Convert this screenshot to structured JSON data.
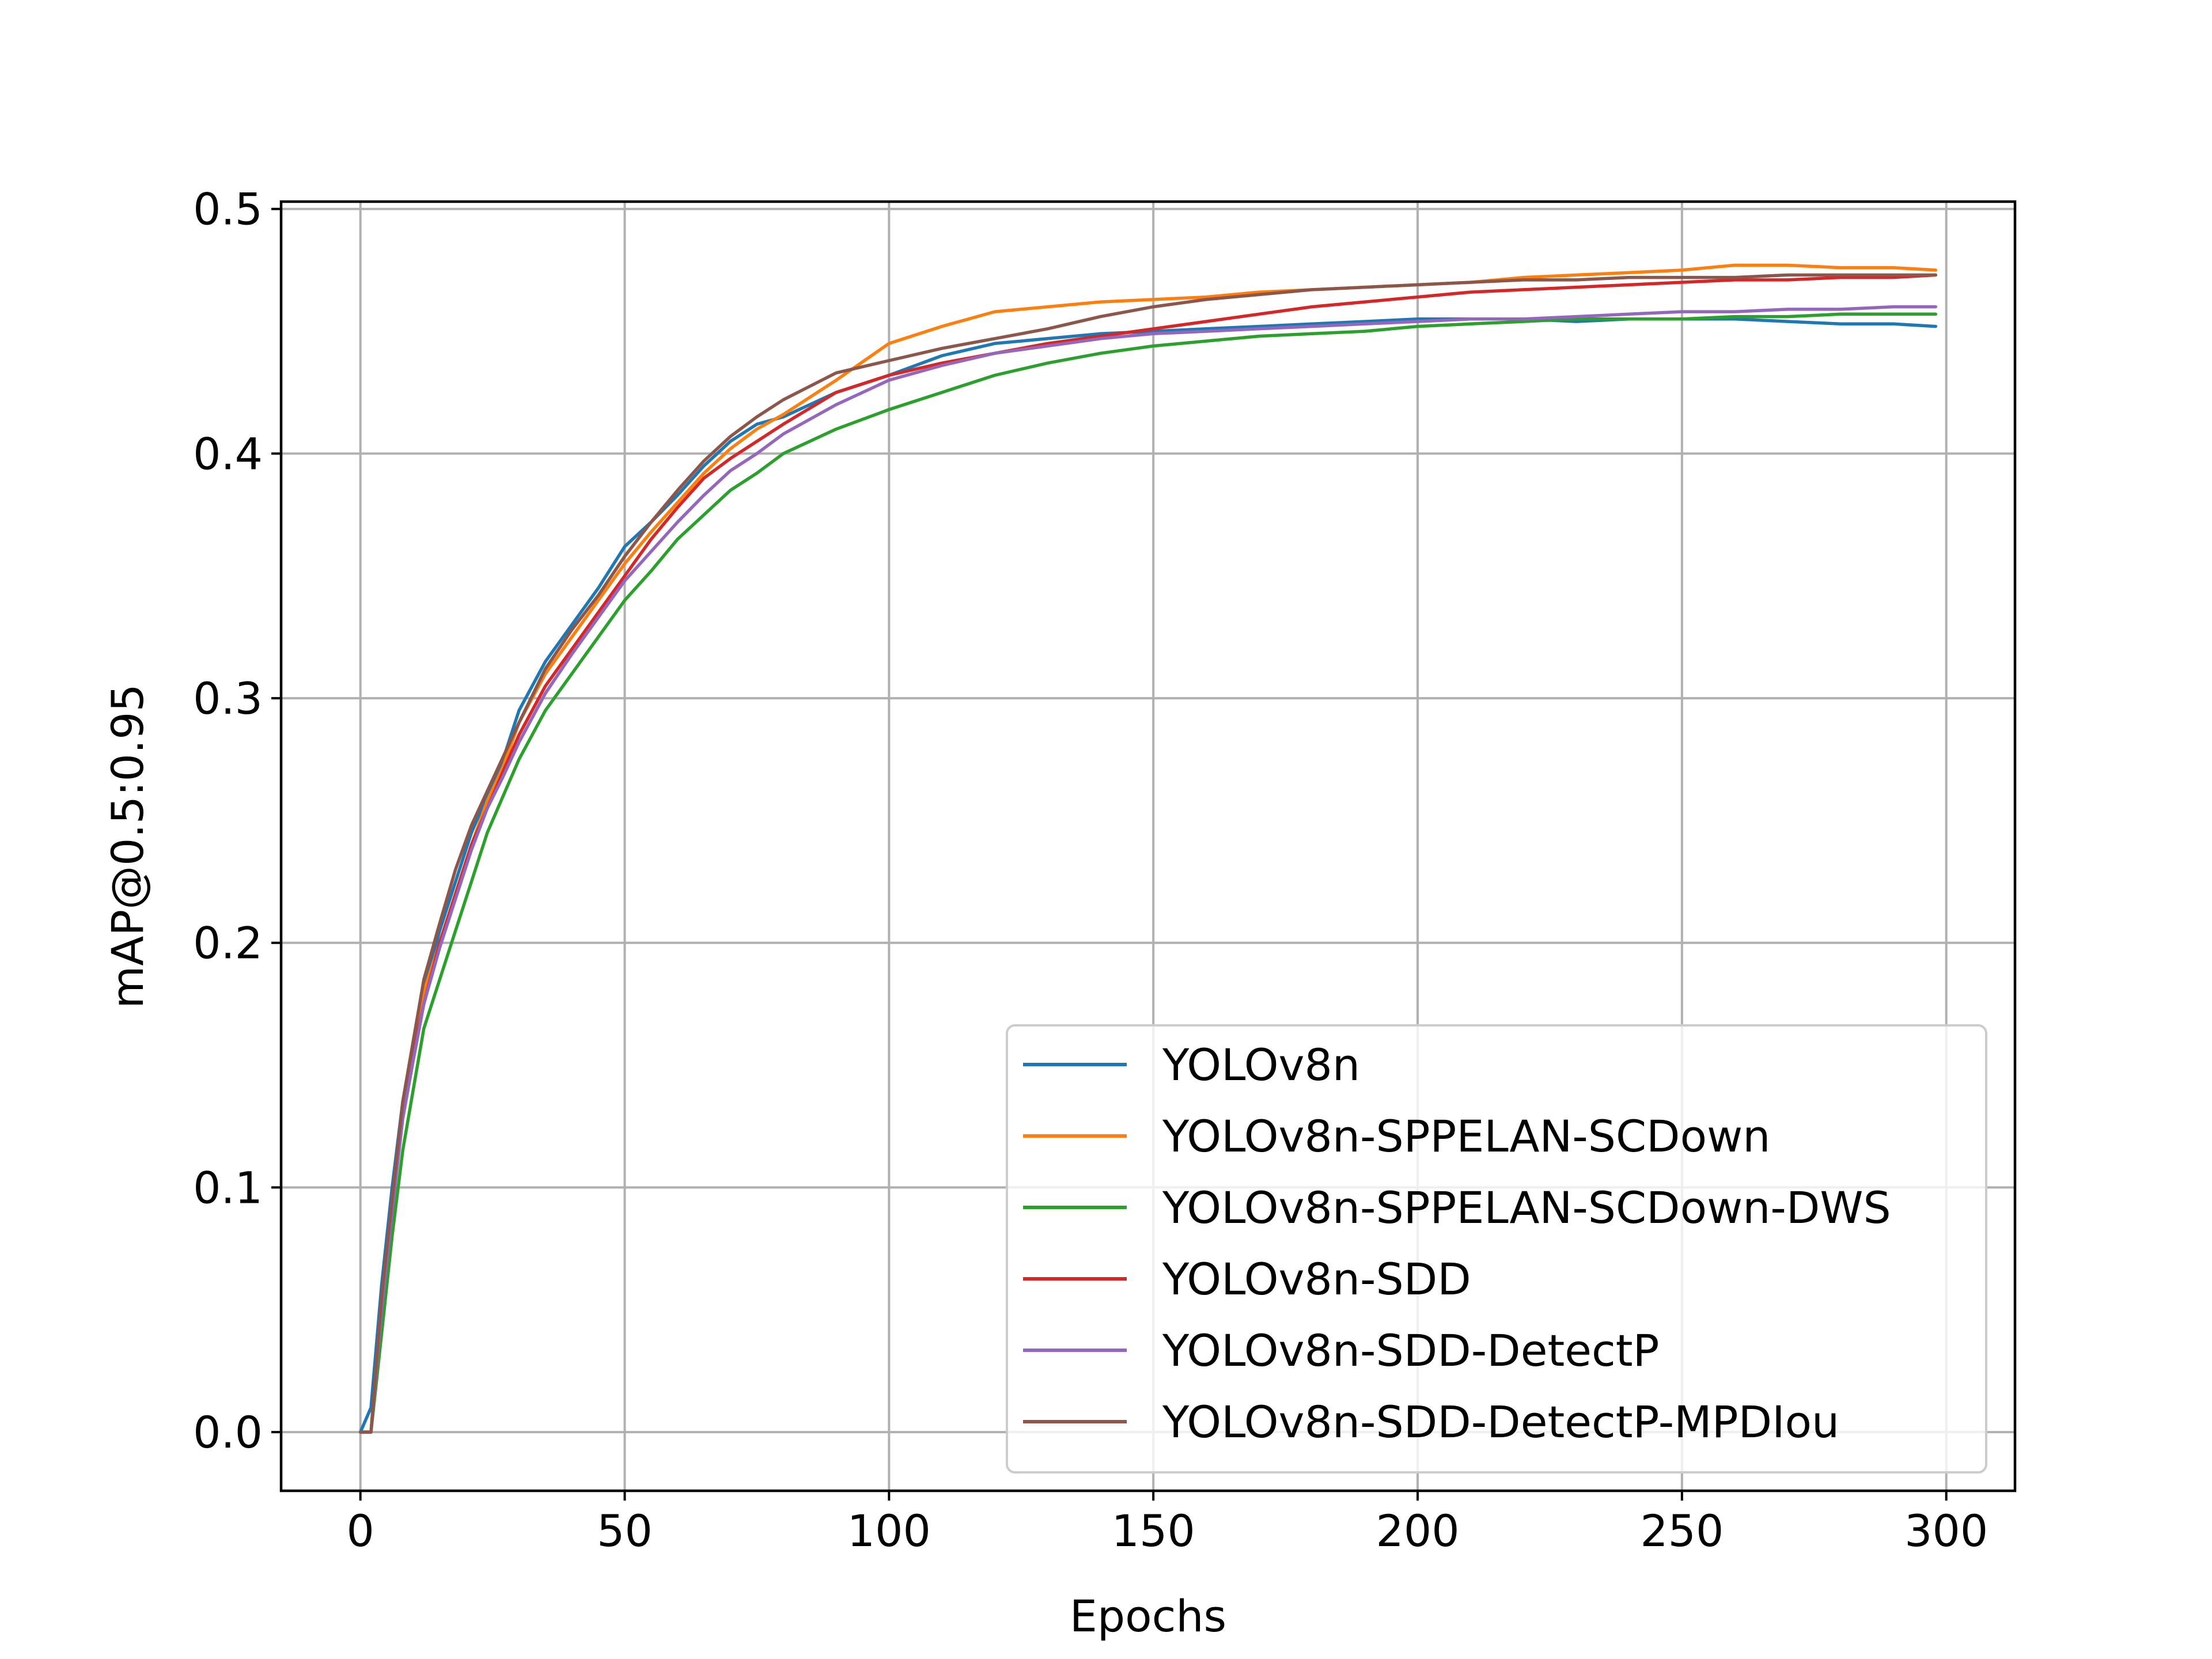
{
  "chart_data": {
    "type": "line",
    "title": "",
    "xlabel": "Epochs",
    "ylabel": "mAP@0.5:0.95",
    "xlim": [
      -15,
      313
    ],
    "ylim": [
      -0.024,
      0.503
    ],
    "xticks": [
      0,
      50,
      100,
      150,
      200,
      250,
      300
    ],
    "yticks": [
      0.0,
      0.1,
      0.2,
      0.3,
      0.4,
      0.5
    ],
    "xtick_labels": [
      "0",
      "50",
      "100",
      "150",
      "200",
      "250",
      "300"
    ],
    "ytick_labels": [
      "0.0",
      "0.1",
      "0.2",
      "0.3",
      "0.4",
      "0.5"
    ],
    "grid": true,
    "legend_position": "lower-right",
    "x": [
      0,
      2,
      4,
      6,
      8,
      10,
      12,
      15,
      18,
      21,
      24,
      27,
      30,
      35,
      40,
      45,
      50,
      55,
      60,
      65,
      70,
      75,
      80,
      90,
      100,
      110,
      120,
      130,
      140,
      150,
      160,
      170,
      180,
      190,
      200,
      210,
      220,
      230,
      240,
      250,
      260,
      270,
      280,
      290,
      298
    ],
    "series": [
      {
        "name": "YOLOv8n",
        "color": "#1f77b4",
        "values": [
          0.0,
          0.01,
          0.06,
          0.1,
          0.135,
          0.158,
          0.18,
          0.205,
          0.225,
          0.245,
          0.26,
          0.275,
          0.295,
          0.315,
          0.33,
          0.345,
          0.362,
          0.372,
          0.383,
          0.395,
          0.405,
          0.412,
          0.415,
          0.425,
          0.432,
          0.44,
          0.445,
          0.447,
          0.449,
          0.45,
          0.451,
          0.452,
          0.453,
          0.454,
          0.455,
          0.455,
          0.455,
          0.454,
          0.455,
          0.455,
          0.455,
          0.454,
          0.453,
          0.453,
          0.452
        ]
      },
      {
        "name": "YOLOv8n-SPPELAN-SCDown",
        "color": "#ff7f0e",
        "values": [
          0.0,
          0.0,
          0.05,
          0.09,
          0.13,
          0.155,
          0.18,
          0.2,
          0.22,
          0.24,
          0.258,
          0.272,
          0.29,
          0.31,
          0.325,
          0.34,
          0.355,
          0.368,
          0.38,
          0.392,
          0.402,
          0.41,
          0.416,
          0.43,
          0.445,
          0.452,
          0.458,
          0.46,
          0.462,
          0.463,
          0.464,
          0.466,
          0.467,
          0.468,
          0.469,
          0.47,
          0.472,
          0.473,
          0.474,
          0.475,
          0.477,
          0.477,
          0.476,
          0.476,
          0.475
        ]
      },
      {
        "name": "YOLOv8n-SPPELAN-SCDown-DWS",
        "color": "#2ca02c",
        "values": [
          0.0,
          0.0,
          0.04,
          0.08,
          0.115,
          0.14,
          0.165,
          0.185,
          0.205,
          0.225,
          0.245,
          0.26,
          0.275,
          0.295,
          0.31,
          0.325,
          0.34,
          0.352,
          0.365,
          0.375,
          0.385,
          0.392,
          0.4,
          0.41,
          0.418,
          0.425,
          0.432,
          0.437,
          0.441,
          0.444,
          0.446,
          0.448,
          0.449,
          0.45,
          0.452,
          0.453,
          0.454,
          0.455,
          0.455,
          0.455,
          0.456,
          0.456,
          0.457,
          0.457,
          0.457
        ]
      },
      {
        "name": "YOLOv8n-SDD",
        "color": "#d62728",
        "values": [
          0.0,
          0.0,
          0.05,
          0.09,
          0.13,
          0.155,
          0.175,
          0.2,
          0.22,
          0.24,
          0.255,
          0.27,
          0.285,
          0.305,
          0.32,
          0.335,
          0.35,
          0.365,
          0.378,
          0.39,
          0.398,
          0.405,
          0.412,
          0.425,
          0.432,
          0.437,
          0.441,
          0.445,
          0.448,
          0.451,
          0.454,
          0.457,
          0.46,
          0.462,
          0.464,
          0.466,
          0.467,
          0.468,
          0.469,
          0.47,
          0.471,
          0.471,
          0.472,
          0.472,
          0.473
        ]
      },
      {
        "name": "YOLOv8n-SDD-DetectP",
        "color": "#9467bd",
        "values": [
          0.0,
          0.0,
          0.05,
          0.09,
          0.128,
          0.152,
          0.175,
          0.198,
          0.218,
          0.238,
          0.255,
          0.268,
          0.282,
          0.302,
          0.318,
          0.333,
          0.348,
          0.36,
          0.372,
          0.383,
          0.393,
          0.4,
          0.408,
          0.42,
          0.43,
          0.436,
          0.441,
          0.444,
          0.447,
          0.449,
          0.45,
          0.451,
          0.452,
          0.453,
          0.454,
          0.455,
          0.455,
          0.456,
          0.457,
          0.458,
          0.458,
          0.459,
          0.459,
          0.46,
          0.46
        ]
      },
      {
        "name": "YOLOv8n-SDD-DetectP-MPDIou",
        "color": "#8c564b",
        "values": [
          0.0,
          0.0,
          0.055,
          0.095,
          0.135,
          0.16,
          0.185,
          0.208,
          0.23,
          0.248,
          0.262,
          0.276,
          0.29,
          0.312,
          0.328,
          0.342,
          0.358,
          0.372,
          0.385,
          0.397,
          0.407,
          0.415,
          0.422,
          0.433,
          0.438,
          0.443,
          0.447,
          0.451,
          0.456,
          0.46,
          0.463,
          0.465,
          0.467,
          0.468,
          0.469,
          0.47,
          0.471,
          0.471,
          0.472,
          0.472,
          0.472,
          0.473,
          0.473,
          0.473,
          0.473
        ]
      }
    ]
  }
}
